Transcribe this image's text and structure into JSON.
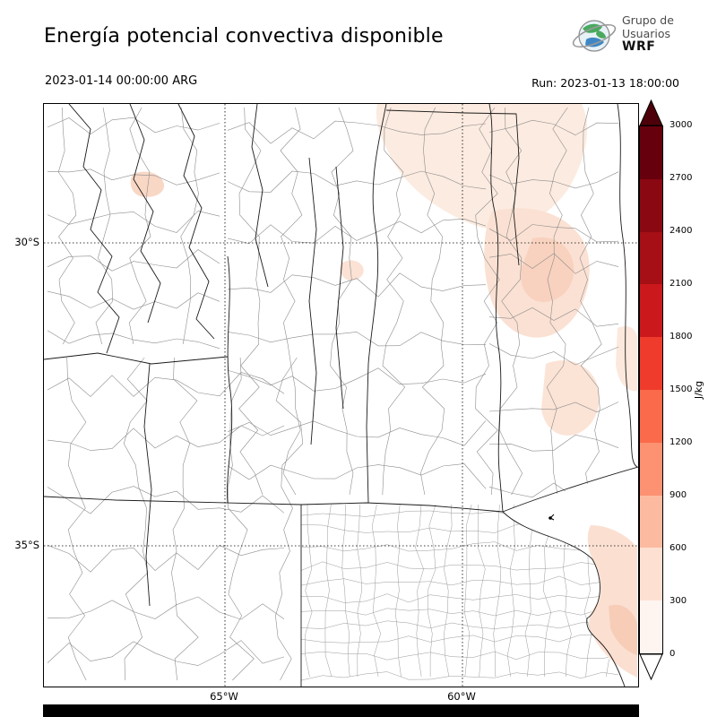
{
  "header": {
    "title": "Energía potencial convectiva disponible",
    "valid_time": "2023-01-14 00:00:00 ARG",
    "run_label": "Run: 2023-01-13 18:00:00",
    "logo": {
      "line1": "Grupo de",
      "line2": "Usuarios",
      "line3": "WRF"
    }
  },
  "map": {
    "lat_labels": [
      "30°S",
      "35°S"
    ],
    "lon_labels": [
      "65°W",
      "60°W"
    ]
  },
  "colorbar": {
    "unit": "J/kg",
    "ticks": [
      0,
      300,
      600,
      900,
      1200,
      1500,
      1800,
      2100,
      2400,
      2700,
      3000
    ],
    "segment_colors_bottom_to_top": [
      "#fff5f0",
      "#fee0d2",
      "#fcbba1",
      "#fc9272",
      "#fb6a4a",
      "#ef3b2c",
      "#cb181d",
      "#a50f15",
      "#8a0812",
      "#67000d"
    ],
    "under_color": "#ffffff",
    "over_color": "#4d0009"
  },
  "chart_data": {
    "type": "heatmap",
    "title": "Energía potencial convectiva disponible",
    "units": "J/kg",
    "valid_time": "2023-01-14 00:00:00 ARG",
    "run": "2023-01-13 18:00:00",
    "colorbar_ticks": [
      0,
      300,
      600,
      900,
      1200,
      1500,
      1800,
      2100,
      2400,
      2700,
      3000
    ],
    "colorbar_range": [
      0,
      3000
    ],
    "lat_gridlines": [
      "30°S",
      "35°S"
    ],
    "lon_gridlines": [
      "65°W",
      "60°W"
    ],
    "observed_values_note": "CAPE mostly near 0 over the domain; light shading (roughly 0-600 J/kg) over the north-central and northeastern sectors and over the southeastern coastal corner"
  }
}
